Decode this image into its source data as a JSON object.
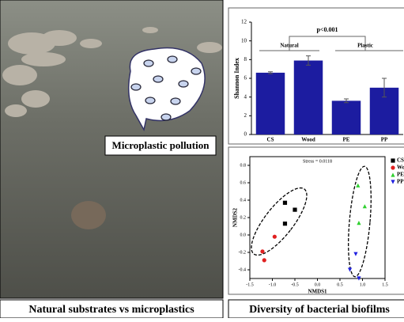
{
  "photo": {
    "label": "Microplastic pollution",
    "caption": "Natural substrates vs microplastics"
  },
  "right_caption": "Diversity of bacterial biofilms",
  "chart_data": [
    {
      "type": "bar",
      "ylabel": "Shannon Index",
      "categories": [
        "CS",
        "Wood",
        "PE",
        "PP"
      ],
      "values": [
        6.6,
        7.9,
        3.6,
        5.0
      ],
      "errors": [
        0.1,
        0.5,
        0.2,
        1.0
      ],
      "color": "#1c1ca0",
      "ylim": [
        0,
        12
      ],
      "yticks": [
        0,
        2,
        4,
        6,
        8,
        10,
        12
      ],
      "annotations": [
        "p<0.001",
        "Natural",
        "Plastic"
      ]
    },
    {
      "type": "scatter",
      "xlabel": "NMDS1",
      "ylabel": "NMDS2",
      "annotation": "Stress = 0.0118",
      "xlim": [
        -1.5,
        1.5
      ],
      "ylim": [
        -0.5,
        0.9
      ],
      "xticks": [
        -1.5,
        {
          "value": -1,
          "label": "-1.0"
        },
        -0.5,
        {
          "value": 0,
          "label": "0.0"
        },
        0.5,
        {
          "value": 1,
          "label": "1.0"
        },
        1.5
      ],
      "yticks": [
        -0.4,
        -0.2,
        {
          "value": 0,
          "label": "0.0"
        },
        0.2,
        0.4,
        0.6,
        0.8
      ],
      "series": [
        {
          "name": "CS",
          "color": "#000000",
          "marker": "square",
          "x": [
            -0.72,
            -0.5,
            -0.72
          ],
          "y": [
            0.37,
            0.29,
            0.13
          ]
        },
        {
          "name": "Wood",
          "color": "#e02020",
          "marker": "circle",
          "x": [
            -0.95,
            -1.22,
            -1.18
          ],
          "y": [
            -0.02,
            -0.19,
            -0.29
          ]
        },
        {
          "name": "PE",
          "color": "#30d030",
          "marker": "triangle-up",
          "x": [
            0.9,
            1.05,
            0.92
          ],
          "y": [
            0.57,
            0.33,
            0.14
          ]
        },
        {
          "name": "PP",
          "color": "#2020e0",
          "marker": "triangle-down",
          "x": [
            0.85,
            0.72,
            0.92
          ],
          "y": [
            -0.22,
            -0.4,
            -0.5
          ]
        }
      ]
    }
  ]
}
